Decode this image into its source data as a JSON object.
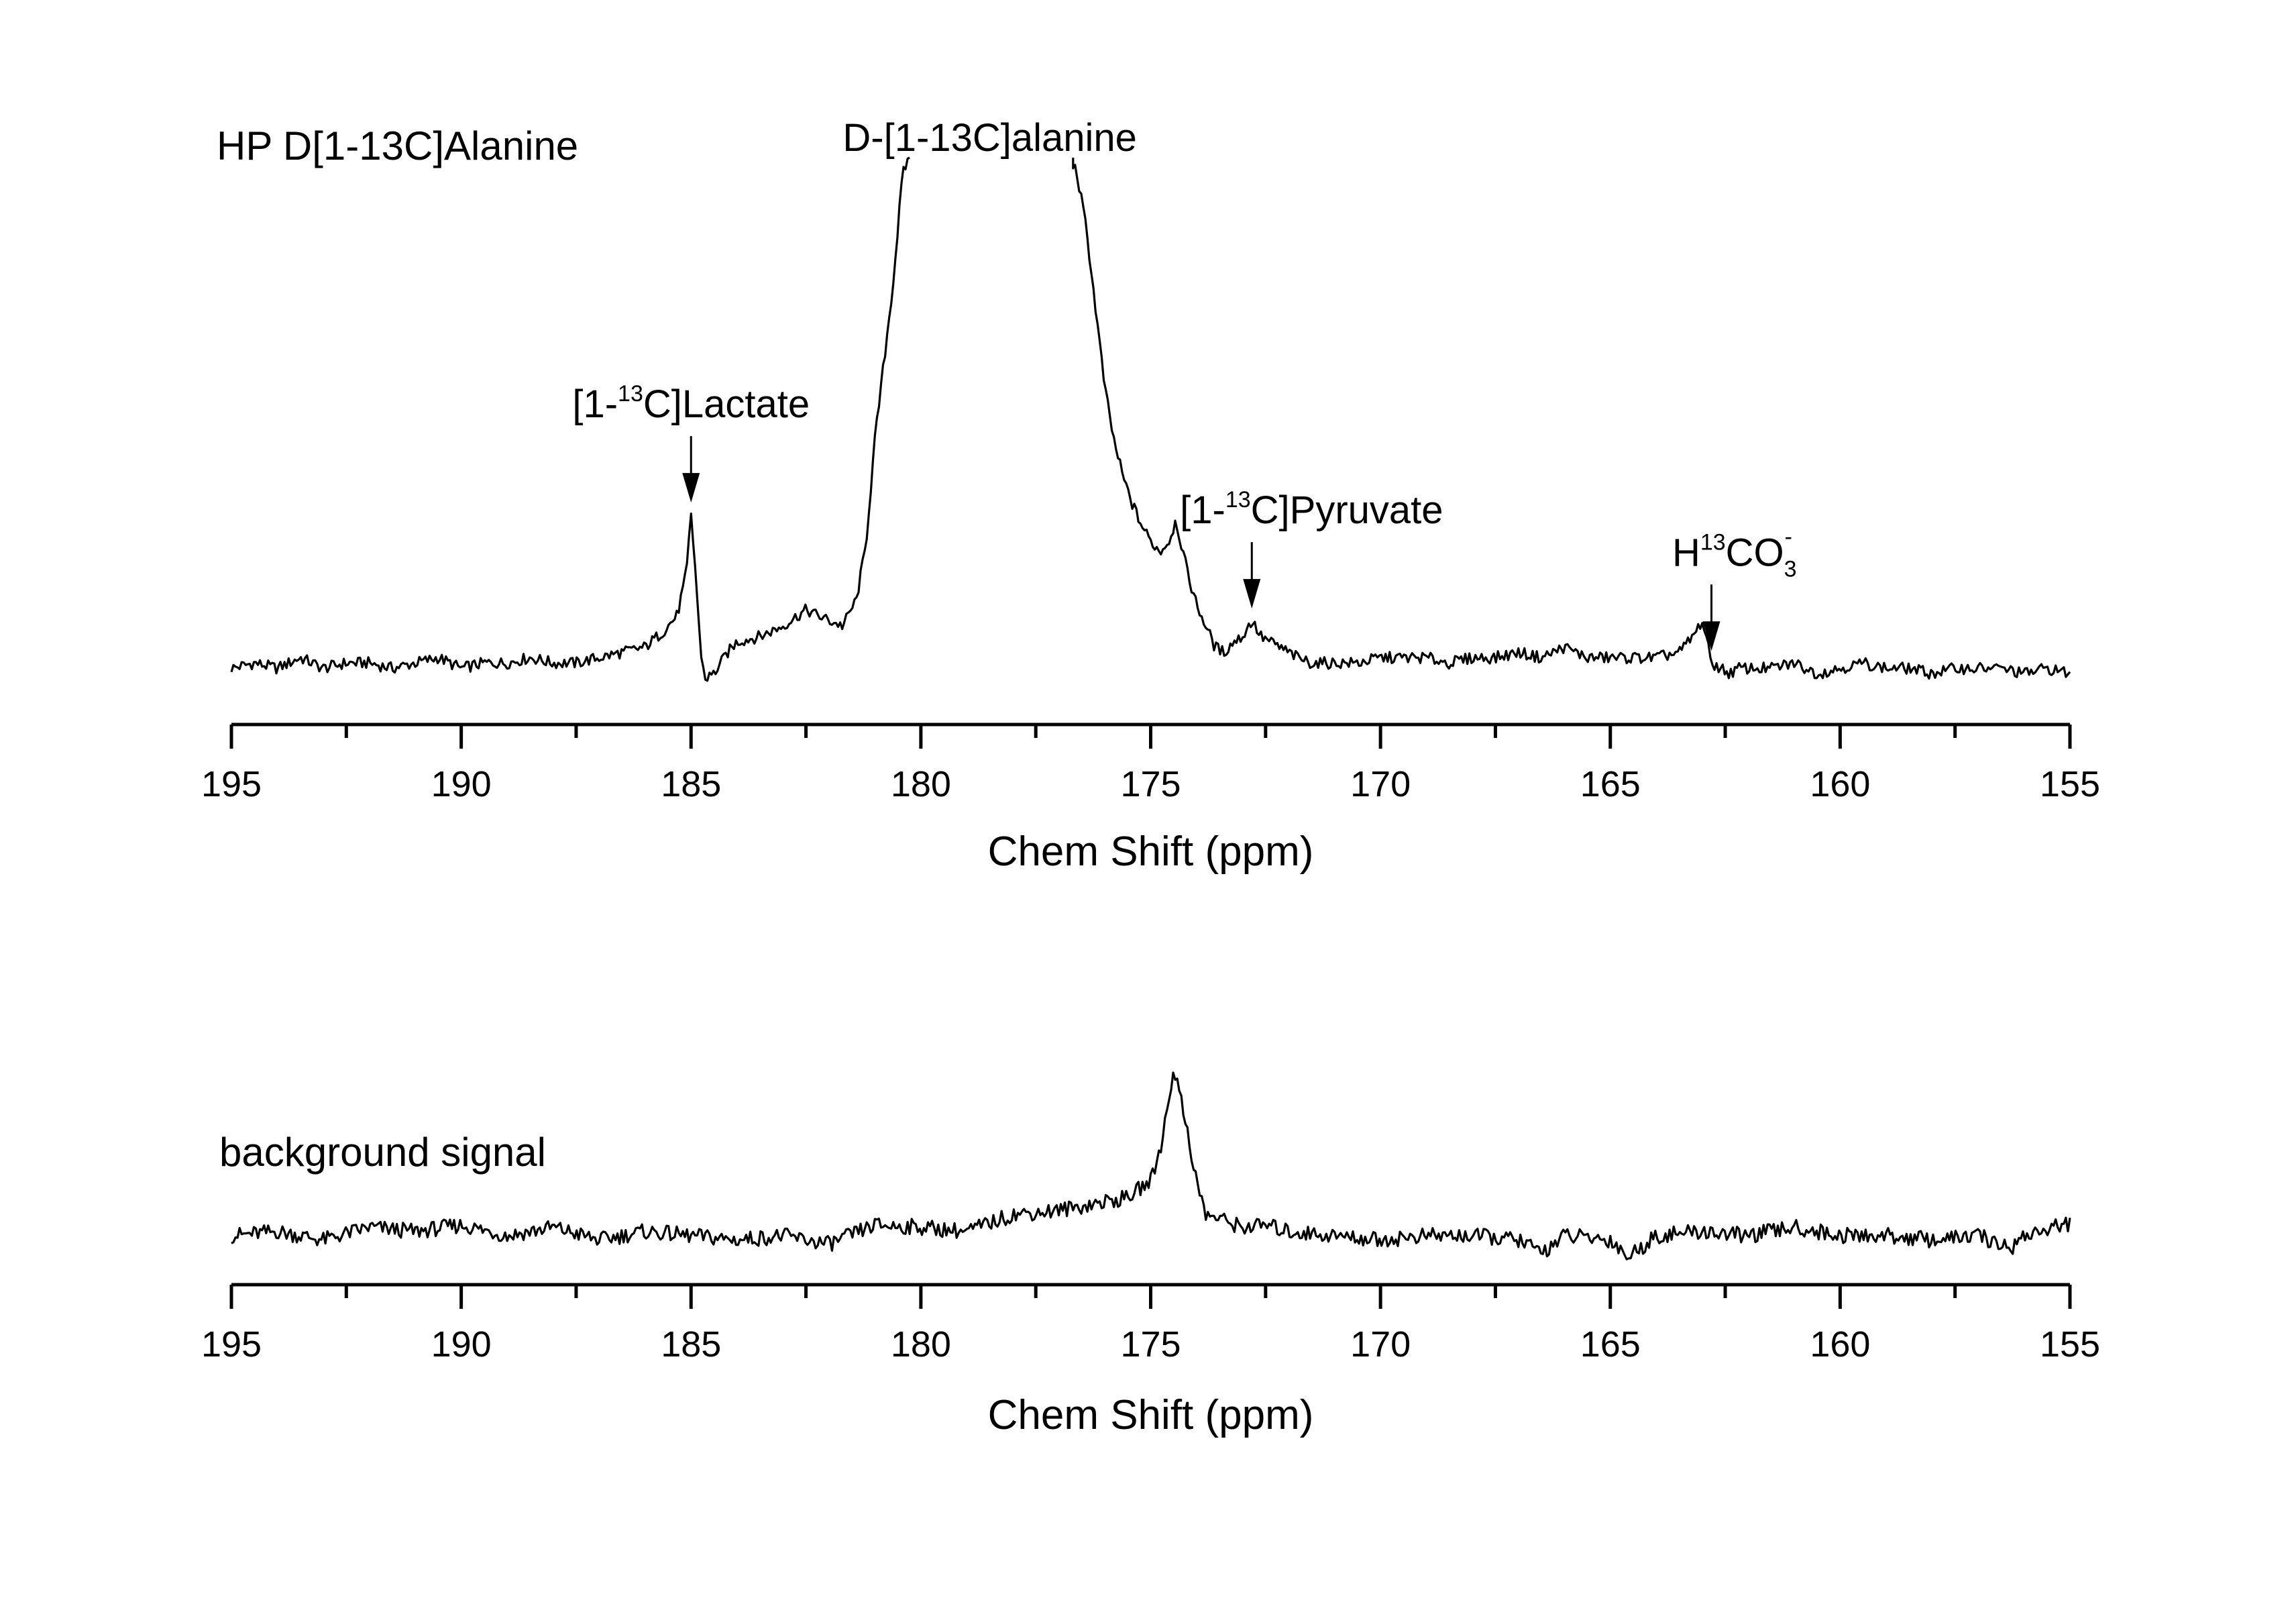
{
  "chart_data": [
    {
      "type": "line",
      "title": "HP D[1-13C]Alanine",
      "xlabel": "Chem Shift (ppm)",
      "ylabel": "",
      "xlim": [
        195,
        155
      ],
      "x_reversed": true,
      "y_axis_shown": false,
      "grid": false,
      "xticks": [
        195,
        190,
        185,
        180,
        175,
        170,
        165,
        160,
        155
      ],
      "series": [
        {
          "x": [
            195,
            194.5,
            194,
            193.5,
            193,
            192.5,
            192,
            191.5,
            191,
            190.5,
            190,
            189.5,
            189,
            188.5,
            188,
            187.5,
            187,
            186.5,
            186,
            185.6,
            185.3,
            185.1,
            185.0,
            184.9,
            184.8,
            184.7,
            184.5,
            184.2,
            184,
            183.5,
            183,
            182.5,
            182,
            181.7,
            181.4,
            181.2,
            181.0,
            180.8,
            180.6,
            180.4,
            180.2,
            176.8,
            176.6,
            176.4,
            176.2,
            176,
            175.8,
            175.6,
            175.4,
            175.2,
            175.0,
            174.8,
            174.6,
            174.45,
            174.3,
            174.2,
            174.0,
            173.8,
            173.6,
            173.4,
            173.2,
            173.0,
            172.8,
            172.6,
            172.4,
            172.2,
            172.0,
            171.8,
            171.5,
            171,
            170.5,
            170,
            169.5,
            169,
            168.5,
            168,
            167.5,
            167,
            166.5,
            166,
            165.5,
            165,
            164.5,
            164,
            163.5,
            163.2,
            163.0,
            162.9,
            162.8,
            162.6,
            162.4,
            162.2,
            162,
            161.5,
            161,
            160.5,
            160,
            159.5,
            159,
            158.5,
            158,
            157.5,
            157,
            156.5,
            156,
            155.5,
            155
          ],
          "values": [
            0.02,
            0.03,
            0.02,
            0.04,
            0.02,
            0.03,
            0.03,
            0.02,
            0.03,
            0.04,
            0.02,
            0.03,
            0.03,
            0.04,
            0.03,
            0.03,
            0.04,
            0.05,
            0.06,
            0.09,
            0.12,
            0.2,
            0.31,
            0.2,
            0.06,
            0.0,
            0.01,
            0.05,
            0.07,
            0.08,
            0.1,
            0.13,
            0.11,
            0.1,
            0.15,
            0.25,
            0.45,
            0.6,
            0.75,
            0.95,
            1.0,
            1.0,
            0.95,
            0.85,
            0.7,
            0.55,
            0.45,
            0.38,
            0.33,
            0.29,
            0.26,
            0.24,
            0.26,
            0.3,
            0.24,
            0.2,
            0.14,
            0.1,
            0.06,
            0.05,
            0.07,
            0.08,
            0.11,
            0.08,
            0.07,
            0.06,
            0.05,
            0.04,
            0.03,
            0.03,
            0.03,
            0.04,
            0.04,
            0.04,
            0.03,
            0.04,
            0.04,
            0.05,
            0.04,
            0.06,
            0.04,
            0.04,
            0.04,
            0.04,
            0.05,
            0.08,
            0.11,
            0.07,
            0.03,
            0.02,
            0.01,
            0.02,
            0.02,
            0.02,
            0.03,
            0.01,
            0.02,
            0.03,
            0.02,
            0.02,
            0.01,
            0.02,
            0.02,
            0.02,
            0.01,
            0.02,
            0.01
          ]
        }
      ],
      "annotations": [
        {
          "text": "D-[1-13C]alanine",
          "x": 178.5,
          "arrow": false
        },
        {
          "text": "[1-13C]Lactate",
          "x": 185.0,
          "arrow": true,
          "label_x": 185.0
        },
        {
          "text": "[1-13C]Pyruvate",
          "x": 172.8,
          "arrow": true,
          "label_x": 171.5
        },
        {
          "text": "H13CO3-",
          "x": 162.8,
          "arrow": true,
          "label_x": 162.3
        }
      ]
    },
    {
      "type": "line",
      "title": "background signal",
      "xlabel": "Chem Shift (ppm)",
      "ylabel": "",
      "xlim": [
        195,
        155
      ],
      "x_reversed": true,
      "y_axis_shown": false,
      "grid": false,
      "xticks": [
        195,
        190,
        185,
        180,
        175,
        170,
        165,
        160,
        155
      ],
      "series": [
        {
          "x": [
            195,
            194,
            193,
            192,
            191,
            190,
            189,
            188,
            187,
            186,
            185,
            184,
            183,
            182,
            181,
            180,
            179,
            178,
            177,
            176,
            175.5,
            175,
            174.8,
            174.6,
            174.5,
            174.4,
            174.2,
            174.0,
            173.8,
            173.5,
            173,
            172.5,
            172,
            171,
            170,
            169,
            168,
            167,
            166.5,
            166,
            165,
            164.6,
            164,
            163,
            162,
            161,
            160,
            159,
            158,
            157,
            156.3,
            156,
            155
          ],
          "values": [
            0.2,
            0.22,
            0.18,
            0.24,
            0.22,
            0.25,
            0.2,
            0.24,
            0.18,
            0.22,
            0.2,
            0.18,
            0.2,
            0.16,
            0.25,
            0.24,
            0.22,
            0.3,
            0.32,
            0.36,
            0.38,
            0.46,
            0.6,
            0.85,
            1.0,
            0.9,
            0.7,
            0.45,
            0.3,
            0.28,
            0.24,
            0.25,
            0.22,
            0.2,
            0.18,
            0.2,
            0.2,
            0.18,
            0.12,
            0.2,
            0.18,
            0.1,
            0.2,
            0.22,
            0.2,
            0.24,
            0.2,
            0.2,
            0.18,
            0.2,
            0.14,
            0.2,
            0.26
          ]
        }
      ],
      "annotations": []
    }
  ]
}
